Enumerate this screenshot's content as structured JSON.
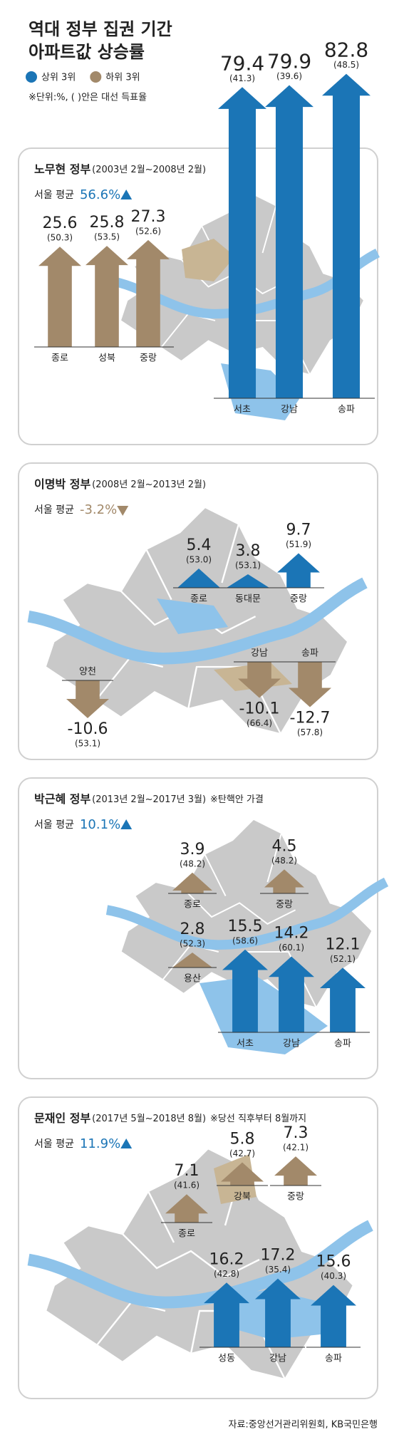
{
  "header": {
    "title_line1": "역대 정부 집권 기간",
    "title_line2": "아파트값 상승률",
    "legend": [
      {
        "label": "상위 3위",
        "color": "#1b75b6"
      },
      {
        "label": "하위 3위",
        "color": "#a2896a"
      }
    ],
    "note": "※단위:%, ( )안은 대선 득표율"
  },
  "panels": [
    {
      "name": "노무현 정부",
      "period": "(2003년 2월~2008년 2월)",
      "avg_label": "서울 평균",
      "avg": "56.6%",
      "trend": "up",
      "items": [
        {
          "district": "종로",
          "value": 25.6,
          "vote": "(50.3)",
          "group": 1
        },
        {
          "district": "성북",
          "value": 25.8,
          "vote": "(53.5)",
          "group": 1
        },
        {
          "district": "중랑",
          "value": 27.3,
          "vote": "(52.6)",
          "group": 1
        },
        {
          "district": "서초",
          "value": 79.4,
          "vote": "(41.3)",
          "group": 0
        },
        {
          "district": "강남",
          "value": 79.9,
          "vote": "(39.6)",
          "group": 0
        },
        {
          "district": "송파",
          "value": 82.8,
          "vote": "(48.5)",
          "group": 0
        }
      ]
    },
    {
      "name": "이명박 정부",
      "period": "(2008년 2월~2013년 2월)",
      "avg_label": "서울 평균",
      "avg": "-3.2%",
      "trend": "down",
      "items": [
        {
          "district": "종로",
          "value": 5.4,
          "vote": "(53.0)",
          "group": 0
        },
        {
          "district": "동대문",
          "value": 3.8,
          "vote": "(53.1)",
          "group": 0
        },
        {
          "district": "중랑",
          "value": 9.7,
          "vote": "(51.9)",
          "group": 0
        },
        {
          "district": "양천",
          "value": -10.6,
          "vote": "(53.1)",
          "group": 1
        },
        {
          "district": "강남",
          "value": -10.1,
          "vote": "(66.4)",
          "group": 1
        },
        {
          "district": "송파",
          "value": -12.7,
          "vote": "(57.8)",
          "group": 1
        }
      ]
    },
    {
      "name": "박근혜 정부",
      "period": "(2013년 2월~2017년 3월)",
      "note": "※탄핵안 가결",
      "avg_label": "서울 평균",
      "avg": "10.1%",
      "trend": "up",
      "items": [
        {
          "district": "종로",
          "value": 3.9,
          "vote": "(48.2)",
          "group": 1
        },
        {
          "district": "중랑",
          "value": 4.5,
          "vote": "(48.2)",
          "group": 1
        },
        {
          "district": "용산",
          "value": 2.8,
          "vote": "(52.3)",
          "group": 1
        },
        {
          "district": "서초",
          "value": 15.5,
          "vote": "(58.6)",
          "group": 0
        },
        {
          "district": "강남",
          "value": 14.2,
          "vote": "(60.1)",
          "group": 0
        },
        {
          "district": "송파",
          "value": 12.1,
          "vote": "(52.1)",
          "group": 0
        }
      ]
    },
    {
      "name": "문재인 정부",
      "period": "(2017년 5월~2018년 8월)",
      "note": "※당선 직후부터 8월까지",
      "avg_label": "서울 평균",
      "avg": "11.9%",
      "trend": "up",
      "items": [
        {
          "district": "종로",
          "value": 7.1,
          "vote": "(41.6)",
          "group": 1
        },
        {
          "district": "강북",
          "value": 5.8,
          "vote": "(42.7)",
          "group": 1
        },
        {
          "district": "중랑",
          "value": 7.3,
          "vote": "(42.1)",
          "group": 1
        },
        {
          "district": "성동",
          "value": 16.2,
          "vote": "(42.8)",
          "group": 0
        },
        {
          "district": "강남",
          "value": 17.2,
          "vote": "(35.4)",
          "group": 0
        },
        {
          "district": "송파",
          "value": 15.6,
          "vote": "(40.3)",
          "group": 0
        }
      ]
    }
  ],
  "source": "자료:중앙선거관리위원회, KB국민은행"
}
